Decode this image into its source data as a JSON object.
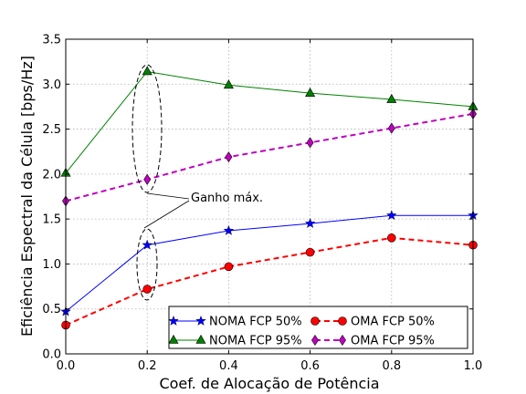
{
  "chart_data": {
    "type": "line",
    "xlabel": "Coef. de Alocação de Potência",
    "ylabel": "Eficiência Espectral da Célula [bps/Hz]",
    "xlim": [
      0.0,
      1.0
    ],
    "ylim": [
      0.0,
      3.5
    ],
    "xticks": [
      0.0,
      0.2,
      0.4,
      0.6,
      0.8,
      1.0
    ],
    "yticks": [
      0.0,
      0.5,
      1.0,
      1.5,
      2.0,
      2.5,
      3.0,
      3.5
    ],
    "xtick_labels": [
      "0.0",
      "0.2",
      "0.4",
      "0.6",
      "0.8",
      "1.0"
    ],
    "ytick_labels": [
      "0.0",
      "0.5",
      "1.0",
      "1.5",
      "2.0",
      "2.5",
      "3.0",
      "3.5"
    ],
    "grid": true,
    "legend_placement": "bottom-right",
    "x": [
      0.0,
      0.2,
      0.4,
      0.6,
      0.8,
      1.0
    ],
    "series": [
      {
        "name": "NOMA FCP 50%",
        "values": [
          0.47,
          1.21,
          1.37,
          1.45,
          1.54,
          1.54
        ],
        "color": "#0000ff",
        "marker": "star",
        "dashed": false
      },
      {
        "name": "NOMA FCP 95%",
        "values": [
          2.01,
          3.14,
          2.99,
          2.9,
          2.83,
          2.75
        ],
        "color": "#008000",
        "marker": "triangle",
        "dashed": false
      },
      {
        "name": "OMA FCP 50%",
        "values": [
          0.32,
          0.72,
          0.97,
          1.13,
          1.29,
          1.21
        ],
        "color": "#ff0000",
        "marker": "circle",
        "dashed": true
      },
      {
        "name": "OMA FCP 95%",
        "values": [
          1.7,
          1.94,
          2.19,
          2.35,
          2.51,
          2.67
        ],
        "color": "#bf00bf",
        "marker": "diamond",
        "dashed": true
      }
    ],
    "annotation": {
      "text": "Ganho máx."
    }
  }
}
